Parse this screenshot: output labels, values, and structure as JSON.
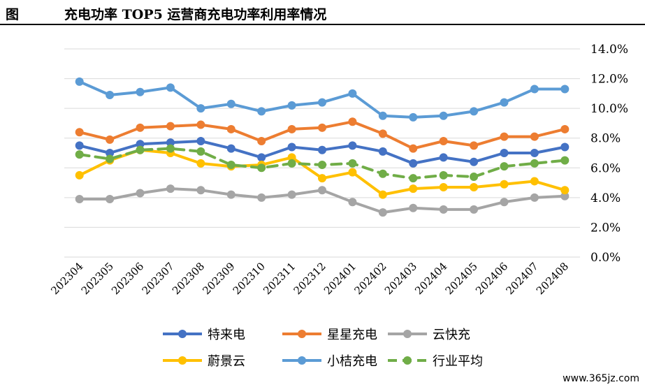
{
  "header": {
    "figure_label": "图",
    "title": "充电功率 TOP5 运营商充电功率利用率情况"
  },
  "watermark": "www.365jz.com",
  "chart_data": {
    "type": "line",
    "title": "充电功率 TOP5 运营商充电功率利用率情况",
    "xlabel": "",
    "ylabel": "",
    "ylim": [
      0,
      14
    ],
    "y_ticks": [
      "0.0%",
      "2.0%",
      "4.0%",
      "6.0%",
      "8.0%",
      "10.0%",
      "12.0%",
      "14.0%"
    ],
    "y_axis_side": "right",
    "grid": "horizontal",
    "legend_position": "bottom",
    "categories": [
      "202304",
      "202305",
      "202306",
      "202307",
      "202308",
      "202309",
      "202310",
      "202311",
      "202312",
      "202401",
      "202402",
      "202403",
      "202404",
      "202405",
      "202406",
      "202407",
      "202408"
    ],
    "series": [
      {
        "name": "特来电",
        "color": "#4472C4",
        "dashed": false,
        "values": [
          7.5,
          7.0,
          7.6,
          7.7,
          7.8,
          7.3,
          6.7,
          7.4,
          7.2,
          7.5,
          7.1,
          6.3,
          6.7,
          6.4,
          7.0,
          7.0,
          7.4
        ]
      },
      {
        "name": "星星充电",
        "color": "#ED7D31",
        "dashed": false,
        "values": [
          8.4,
          7.9,
          8.7,
          8.8,
          8.9,
          8.6,
          7.8,
          8.6,
          8.7,
          9.1,
          8.3,
          7.3,
          7.8,
          7.5,
          8.1,
          8.1,
          8.6
        ]
      },
      {
        "name": "云快充",
        "color": "#A5A5A5",
        "dashed": false,
        "values": [
          3.9,
          3.9,
          4.3,
          4.6,
          4.5,
          4.2,
          4.0,
          4.2,
          4.5,
          3.7,
          3.0,
          3.3,
          3.2,
          3.2,
          3.7,
          4.0,
          4.1
        ]
      },
      {
        "name": "蔚景云",
        "color": "#FFC000",
        "dashed": false,
        "values": [
          5.5,
          6.5,
          7.2,
          7.0,
          6.3,
          6.1,
          6.2,
          6.7,
          5.3,
          5.7,
          4.2,
          4.6,
          4.7,
          4.7,
          4.9,
          5.1,
          4.5
        ]
      },
      {
        "name": "小桔充电",
        "color": "#5B9BD5",
        "dashed": false,
        "values": [
          11.8,
          10.9,
          11.1,
          11.4,
          10.0,
          10.3,
          9.8,
          10.2,
          10.4,
          11.0,
          9.5,
          9.4,
          9.5,
          9.8,
          10.4,
          11.3,
          11.3
        ]
      },
      {
        "name": "行业平均",
        "color": "#70AD47",
        "dashed": true,
        "values": [
          6.9,
          6.6,
          7.2,
          7.3,
          7.1,
          6.2,
          6.0,
          6.3,
          6.2,
          6.3,
          5.6,
          5.3,
          5.5,
          5.4,
          6.1,
          6.3,
          6.5
        ]
      }
    ]
  }
}
